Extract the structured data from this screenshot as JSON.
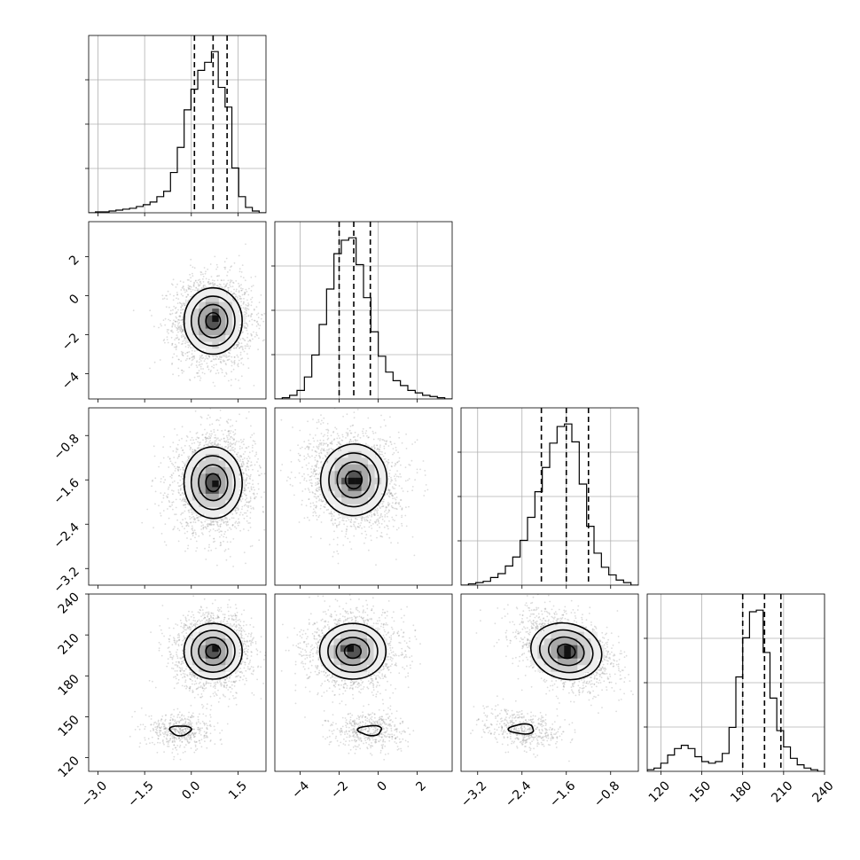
{
  "chart_data": {
    "type": "corner",
    "parameters": [
      {
        "range": [
          -3.3,
          2.4
        ],
        "ticks": [
          -3.0,
          -1.5,
          0.0,
          1.5
        ],
        "tick_labels": [
          "−3.0",
          "−1.5",
          "0.0",
          "1.5"
        ],
        "quantiles": [
          0.1,
          0.7,
          1.15
        ]
      },
      {
        "range": [
          -5.3,
          3.8
        ],
        "ticks": [
          -4,
          -2,
          0,
          2
        ],
        "tick_labels": [
          "−4",
          "−2",
          "0",
          "2"
        ],
        "quantiles": [
          -2.0,
          -1.25,
          -0.4
        ]
      },
      {
        "range": [
          -3.5,
          -0.3
        ],
        "ticks": [
          -3.2,
          -2.4,
          -1.6,
          -0.8
        ],
        "tick_labels": [
          "−3.2",
          "−2.4",
          "−1.6",
          "−0.8"
        ],
        "quantiles": [
          -2.05,
          -1.6,
          -1.2
        ]
      },
      {
        "range": [
          110,
          240
        ],
        "ticks": [
          120,
          150,
          180,
          210,
          240
        ],
        "tick_labels": [
          "120",
          "150",
          "180",
          "210",
          "240"
        ],
        "quantiles": [
          180,
          196,
          208
        ]
      }
    ],
    "histograms": [
      {
        "bins": [
          -3.3,
          2.4
        ],
        "counts": [
          0,
          1,
          1,
          2,
          3,
          4,
          5,
          7,
          9,
          12,
          18,
          24,
          45,
          73,
          115,
          138,
          159,
          168,
          180,
          140,
          118,
          50,
          18,
          6,
          2,
          0
        ]
      },
      {
        "bins": [
          -5.3,
          3.8
        ],
        "counts": [
          0,
          1,
          3,
          7,
          18,
          36,
          61,
          90,
          119,
          130,
          132,
          110,
          83,
          55,
          35,
          22,
          15,
          11,
          7,
          5,
          3,
          2,
          1,
          0
        ]
      },
      {
        "bins": [
          -3.5,
          -0.3
        ],
        "counts": [
          0,
          1,
          2,
          3,
          6,
          9,
          15,
          22,
          35,
          53,
          73,
          92,
          111,
          124,
          126,
          112,
          79,
          46,
          25,
          14,
          8,
          4,
          2,
          0
        ]
      },
      {
        "bins": [
          110,
          240
        ],
        "counts": [
          1,
          2,
          5,
          10,
          14,
          16,
          14,
          9,
          6,
          5,
          6,
          11,
          27,
          58,
          82,
          98,
          99,
          73,
          45,
          25,
          15,
          8,
          4,
          2,
          1,
          0
        ]
      }
    ],
    "pairs": [
      {
        "xi": 0,
        "yi": 1,
        "clusters": [
          {
            "mx": 0.7,
            "my": -1.3,
            "sx": 0.55,
            "sy": 1.0,
            "w": 1.0
          }
        ],
        "rho": 0.0
      },
      {
        "xi": 0,
        "yi": 2,
        "clusters": [
          {
            "mx": 0.7,
            "my": -1.65,
            "sx": 0.55,
            "sy": 0.38,
            "w": 1.0
          }
        ],
        "rho": 0.05
      },
      {
        "xi": 1,
        "yi": 2,
        "clusters": [
          {
            "mx": -1.25,
            "my": -1.6,
            "sx": 1.0,
            "sy": 0.38,
            "w": 1.0
          }
        ],
        "rho": -0.1
      },
      {
        "xi": 0,
        "yi": 3,
        "clusters": [
          {
            "mx": 0.7,
            "my": 198,
            "sx": 0.55,
            "sy": 12,
            "w": 0.8
          },
          {
            "mx": -0.35,
            "my": 140,
            "sx": 0.45,
            "sy": 6,
            "w": 0.2
          }
        ],
        "rho": 0.0
      },
      {
        "xi": 1,
        "yi": 3,
        "clusters": [
          {
            "mx": -1.3,
            "my": 198,
            "sx": 1.0,
            "sy": 12,
            "w": 0.8
          },
          {
            "mx": -0.4,
            "my": 140,
            "sx": 0.8,
            "sy": 6,
            "w": 0.2
          }
        ],
        "rho": 0.0
      },
      {
        "xi": 2,
        "yi": 3,
        "clusters": [
          {
            "mx": -1.6,
            "my": 198,
            "sx": 0.38,
            "sy": 12,
            "w": 0.8
          },
          {
            "mx": -2.4,
            "my": 141,
            "sx": 0.3,
            "sy": 6,
            "w": 0.2
          }
        ],
        "rho": -0.35
      }
    ],
    "contour_sigmas": [
      0.5,
      1.0,
      1.5,
      2.0
    ],
    "grid": true
  }
}
